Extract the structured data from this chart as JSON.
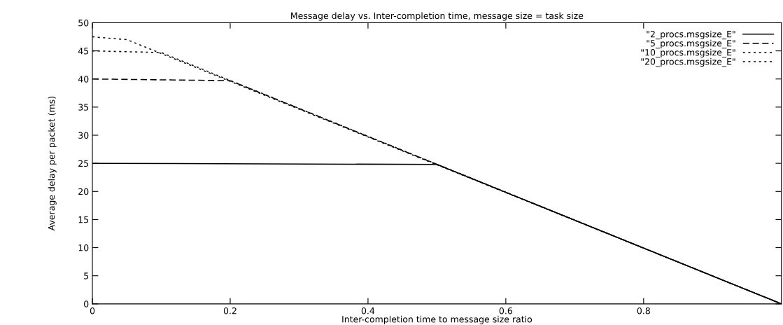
{
  "chart_data": {
    "type": "line",
    "title": "Message delay vs. Inter-completion time, message size = task size",
    "xlabel": "Inter-completion time to message size ratio",
    "ylabel": "Average delay per packet (ms)",
    "series": [
      {
        "name": "\"2_procs.msgsize_E\"",
        "color": "#000000",
        "line_style": "solid",
        "x": [
          0,
          0.5,
          1
        ],
        "values": [
          25,
          24.8,
          0
        ]
      },
      {
        "name": "\"5_procs.msgsize_E\"",
        "color": "#000000",
        "line_style": "dashed",
        "x": [
          0,
          0.2,
          1
        ],
        "values": [
          40,
          39.7,
          0
        ]
      },
      {
        "name": "\"10_procs.msgsize_E\"",
        "color": "#000000",
        "line_style": "dotted",
        "x": [
          0,
          0.1,
          1
        ],
        "values": [
          45,
          44.7,
          0
        ]
      },
      {
        "name": "\"20_procs.msgsize_E\"",
        "color": "#000000",
        "line_style": "dotted",
        "x": [
          0,
          0.05,
          1
        ],
        "values": [
          47.5,
          47,
          0
        ]
      }
    ],
    "xlim": [
      0,
      1
    ],
    "xticks": [
      0,
      0.2,
      0.4,
      0.6,
      0.8
    ],
    "ylim": [
      0,
      50
    ],
    "yticks": [
      0,
      5,
      10,
      15,
      20,
      25,
      30,
      35,
      40,
      45,
      50
    ],
    "grid": false,
    "legend": "top right",
    "marker": "none"
  }
}
